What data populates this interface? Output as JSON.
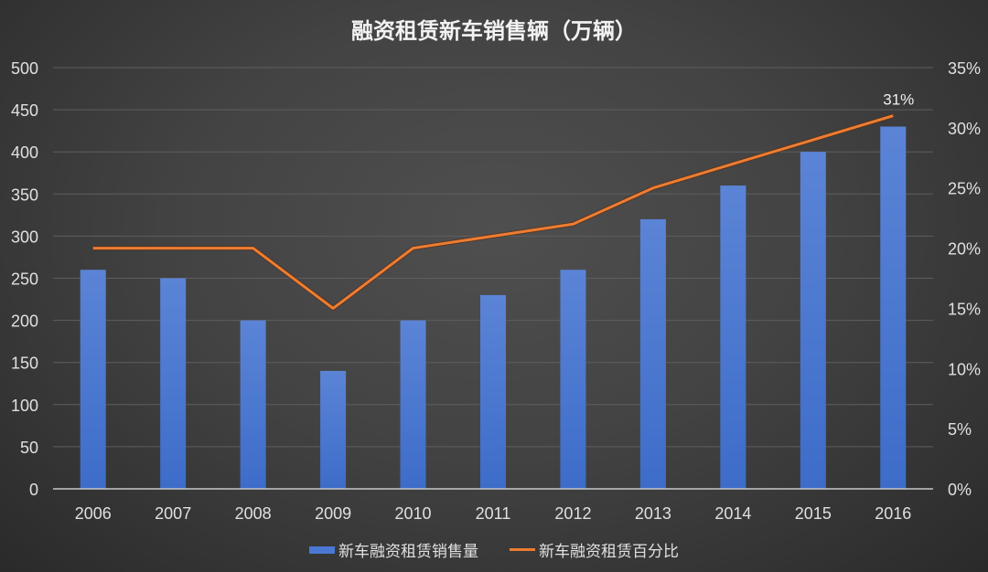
{
  "chart_data": {
    "type": "bar+line",
    "title": "融资租赁新车销售辆（万辆）",
    "categories": [
      "2006",
      "2007",
      "2008",
      "2009",
      "2010",
      "2011",
      "2012",
      "2013",
      "2014",
      "2015",
      "2016"
    ],
    "series": [
      {
        "name": "新车融资租赁销售量",
        "type": "bar",
        "axis": "left",
        "color": "#4a78d4",
        "values": [
          260,
          250,
          200,
          140,
          200,
          230,
          260,
          320,
          360,
          400,
          430
        ]
      },
      {
        "name": "新车融资租赁百分比",
        "type": "line",
        "axis": "right",
        "color": "#ed7d31",
        "values": [
          20,
          20,
          20,
          15,
          20,
          21,
          22,
          25,
          27,
          29,
          31
        ]
      }
    ],
    "left_axis": {
      "min": 0,
      "max": 500,
      "ticks": [
        "0",
        "50",
        "100",
        "150",
        "200",
        "250",
        "300",
        "350",
        "400",
        "450",
        "500"
      ]
    },
    "right_axis": {
      "min": 0,
      "max": 35,
      "ticks": [
        "0%",
        "5%",
        "10%",
        "15%",
        "20%",
        "25%",
        "30%",
        "35%"
      ]
    },
    "annotations": [
      {
        "category": "2016",
        "text": "31%"
      }
    ],
    "grid": true,
    "legend_position": "bottom"
  },
  "legend": {
    "bar_label": "新车融资租赁销售量",
    "line_label": "新车融资租赁百分比"
  }
}
